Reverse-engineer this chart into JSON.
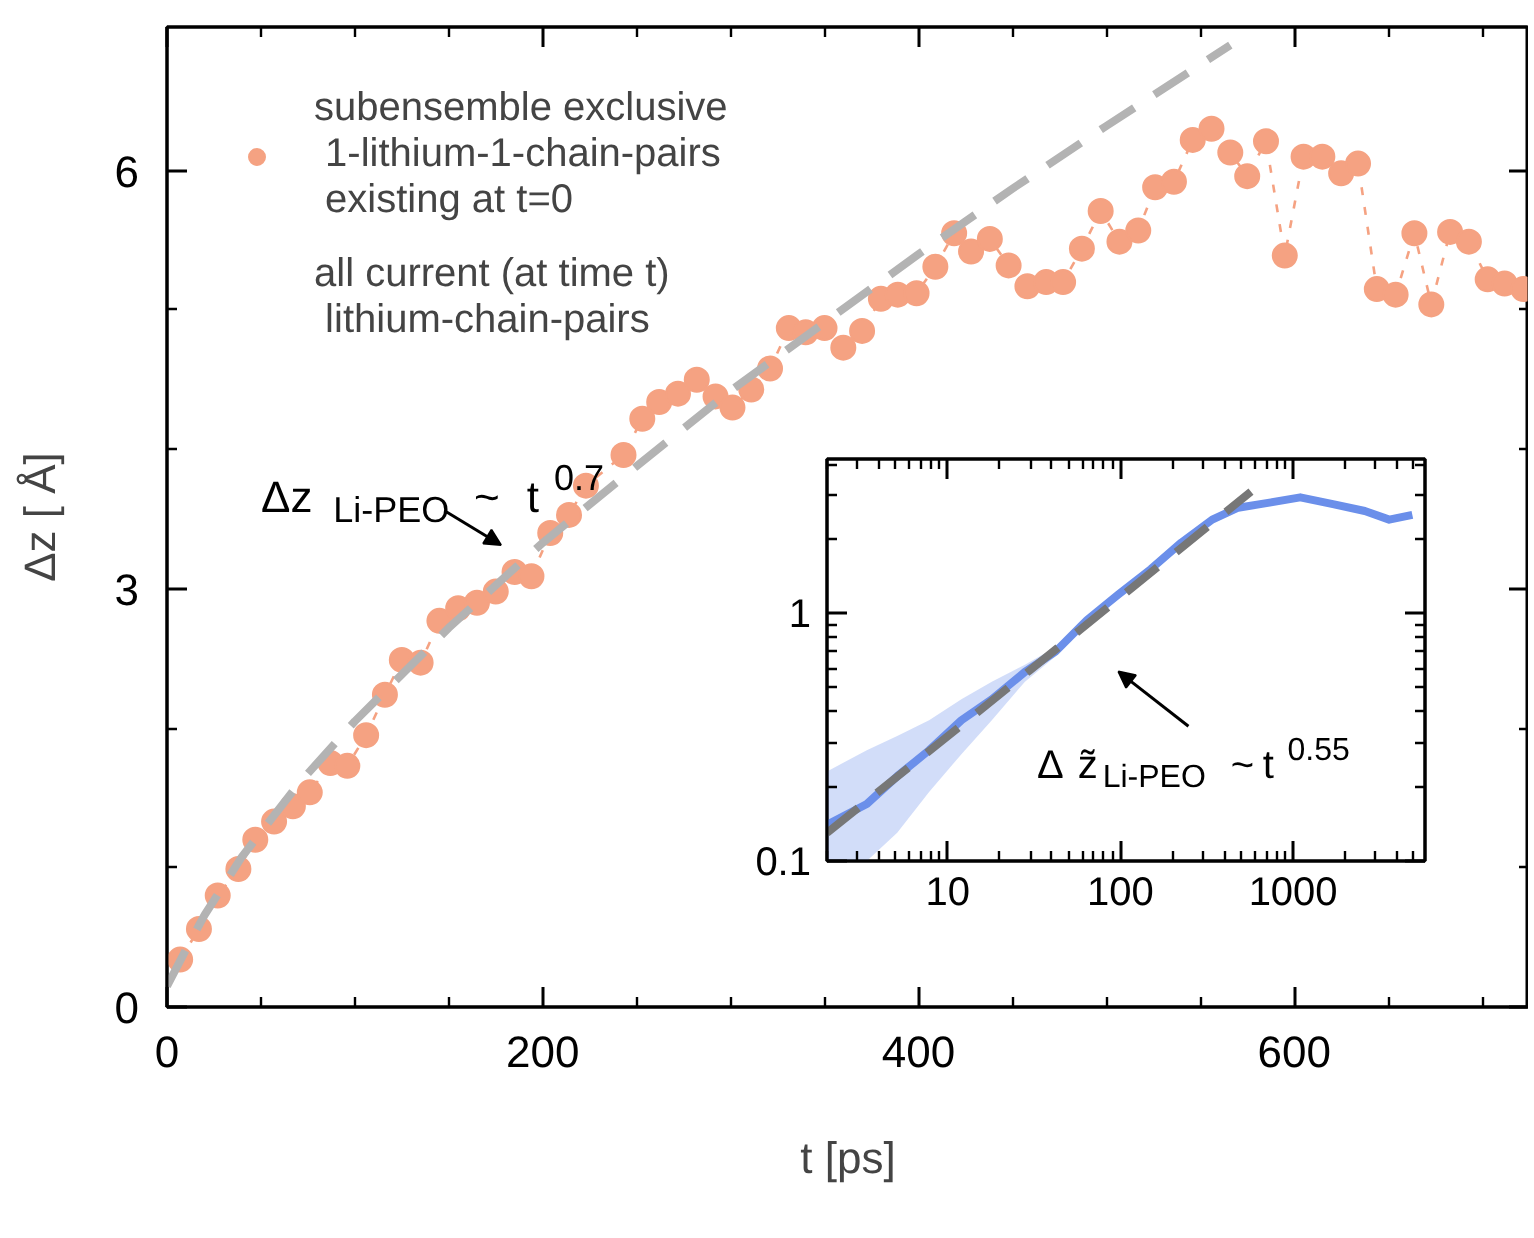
{
  "chart_data": [
    {
      "type": "line",
      "xlabel": "t [ps]",
      "ylabel": "Δz [ Å]",
      "xlim": [
        0,
        725
      ],
      "ylim": [
        0,
        7.03
      ],
      "xticks": [
        0,
        {
          "value": 50,
          "label": null
        },
        200,
        {
          "value": 100,
          "label": null
        },
        {
          "value": 150,
          "label": null
        },
        {
          "value": 250,
          "label": null
        },
        {
          "value": 300,
          "label": null
        },
        {
          "value": 350,
          "label": null
        },
        400,
        {
          "value": 450,
          "label": null
        },
        {
          "value": 500,
          "label": null
        },
        {
          "value": 550,
          "label": null
        },
        600,
        {
          "value": 650,
          "label": null
        },
        {
          "value": 700,
          "label": null
        }
      ],
      "yticks": [
        0,
        {
          "value": 1,
          "label": null
        },
        {
          "value": 2,
          "label": null
        },
        3,
        {
          "value": 4,
          "label": null
        },
        {
          "value": 5,
          "label": null
        },
        6
      ],
      "grid": false,
      "legend": "top left",
      "annotations": [
        "Δz $_{Li-PEO}$ ~  t$^{0.7}$"
      ],
      "series": [
        {
          "name": "subensemble exclusive\n 1-lithium-1-chain-pairs\n existing at t=0",
          "color": "#f5a282",
          "marker": "circle",
          "line_style": "dashed",
          "x": [
            7,
            17,
            27,
            38,
            47,
            57,
            67,
            76,
            87,
            96,
            106,
            116,
            125,
            135,
            145,
            155,
            165,
            175,
            185,
            194,
            204,
            214,
            223,
            243,
            253,
            262,
            272,
            282,
            292,
            301,
            311,
            321,
            331,
            340,
            350,
            360,
            370,
            380,
            389,
            399,
            409,
            419,
            428,
            438,
            448,
            458,
            468,
            477,
            487,
            497,
            507,
            517,
            526,
            536,
            546,
            556,
            566,
            575,
            585,
            595,
            605,
            615,
            625,
            634,
            644,
            654,
            664,
            673,
            683,
            693,
            703,
            712,
            722
          ],
          "values": [
            0.34,
            0.56,
            0.8,
            0.99,
            1.2,
            1.33,
            1.44,
            1.54,
            1.75,
            1.73,
            1.95,
            2.24,
            2.49,
            2.47,
            2.77,
            2.86,
            2.9,
            2.98,
            3.12,
            3.09,
            3.4,
            3.53,
            3.74,
            3.96,
            4.22,
            4.34,
            4.4,
            4.5,
            4.38,
            4.3,
            4.43,
            4.58,
            4.87,
            4.84,
            4.87,
            4.73,
            4.85,
            5.08,
            5.11,
            5.12,
            5.31,
            5.55,
            5.42,
            5.51,
            5.32,
            5.17,
            5.2,
            5.2,
            5.44,
            5.71,
            5.49,
            5.57,
            5.88,
            5.92,
            6.22,
            6.3,
            6.13,
            5.96,
            6.21,
            5.39,
            6.1,
            6.1,
            5.98,
            6.05,
            5.15,
            5.11,
            5.55,
            5.04,
            5.56,
            5.49,
            5.22,
            5.19,
            5.15
          ]
        },
        {
          "color": "#b3b3b3",
          "line_style": "dashed",
          "x": [
            0,
            10,
            20,
            40,
            70,
            100,
            150,
            200,
            250,
            300,
            350,
            400,
            450,
            500,
            566
          ],
          "values": [
            0.15,
            0.41,
            0.66,
            1.08,
            1.6,
            2.05,
            2.72,
            3.33,
            3.88,
            4.42,
            4.91,
            5.4,
            5.87,
            6.32,
            6.9
          ]
        }
      ]
    },
    {
      "type": "line",
      "log": "xy",
      "xlim": [
        2,
        5800
      ],
      "ylim": [
        0.1,
        4.2
      ],
      "xticks": [
        10,
        100,
        1000
      ],
      "yticks": [
        0.1,
        1
      ],
      "grid": false,
      "annotations": [
        "Δ z̃$_{Li-PEO}$ ~ t$^{0.55}$"
      ],
      "series": [
        {
          "name": "all current (at time t)\n lithium-chain-pairs",
          "color": "#6b8fea",
          "line_style": "solid",
          "x": [
            2,
            3.4,
            5.1,
            7.8,
            12,
            18,
            28,
            42,
            64,
            97,
            150,
            225,
            340,
            480,
            730,
            1100,
            1700,
            2600,
            3600,
            4900
          ],
          "values": [
            0.14,
            0.17,
            0.22,
            0.28,
            0.37,
            0.45,
            0.58,
            0.7,
            0.94,
            1.19,
            1.51,
            1.93,
            2.39,
            2.67,
            2.8,
            2.94,
            2.76,
            2.59,
            2.39,
            2.5
          ],
          "lower": [
            0.1,
            0.1,
            0.13,
            0.19,
            0.27,
            0.37,
            0.53,
            0.67,
            null,
            null,
            null,
            null,
            null,
            null,
            null,
            null,
            null,
            null,
            null,
            null
          ],
          "upper": [
            0.23,
            0.28,
            0.32,
            0.37,
            0.45,
            0.53,
            0.62,
            0.73,
            null,
            null,
            null,
            null,
            null,
            null,
            null,
            null,
            null,
            null,
            null,
            null
          ]
        },
        {
          "color": "#777777",
          "line_style": "dashed",
          "x": [
            2,
            30,
            570
          ],
          "values": [
            0.13,
            0.59,
            3.1
          ]
        }
      ]
    }
  ]
}
